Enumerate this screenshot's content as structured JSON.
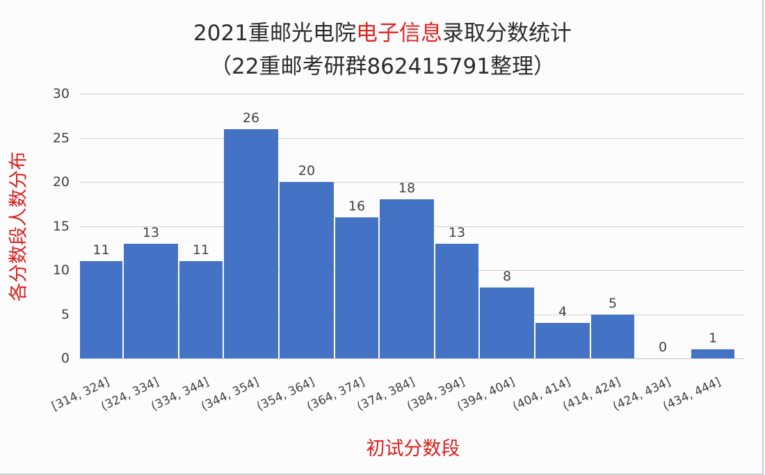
{
  "chart_data": {
    "type": "bar",
    "title_line1_parts": [
      "2021重邮光电院",
      "电子信息",
      "录取分数统计"
    ],
    "title_line2": "（22重邮考研群862415791整理）",
    "xlabel": "初试分数段",
    "ylabel": "各分数段人数分布",
    "ylim": [
      0,
      30
    ],
    "yticks": [
      "0",
      "5",
      "10",
      "15",
      "20",
      "25",
      "30"
    ],
    "grid": true,
    "categories": [
      "[314, 324]",
      "(324, 334]",
      "(334, 344]",
      "(344, 354]",
      "(354, 364]",
      "(364, 374]",
      "(374, 384]",
      "(384, 394]",
      "(394, 404]",
      "(404, 414]",
      "(414, 424]",
      "(424, 434]",
      "(434, 444]"
    ],
    "values": [
      11,
      13,
      11,
      26,
      20,
      16,
      18,
      13,
      8,
      4,
      5,
      0,
      1
    ],
    "value_labels": [
      "11",
      "13",
      "11",
      "26",
      "20",
      "16",
      "18",
      "13",
      "8",
      "4",
      "5",
      "0",
      "1"
    ],
    "colors": {
      "bar": "#4472c4",
      "highlight": "#e3231e"
    }
  }
}
